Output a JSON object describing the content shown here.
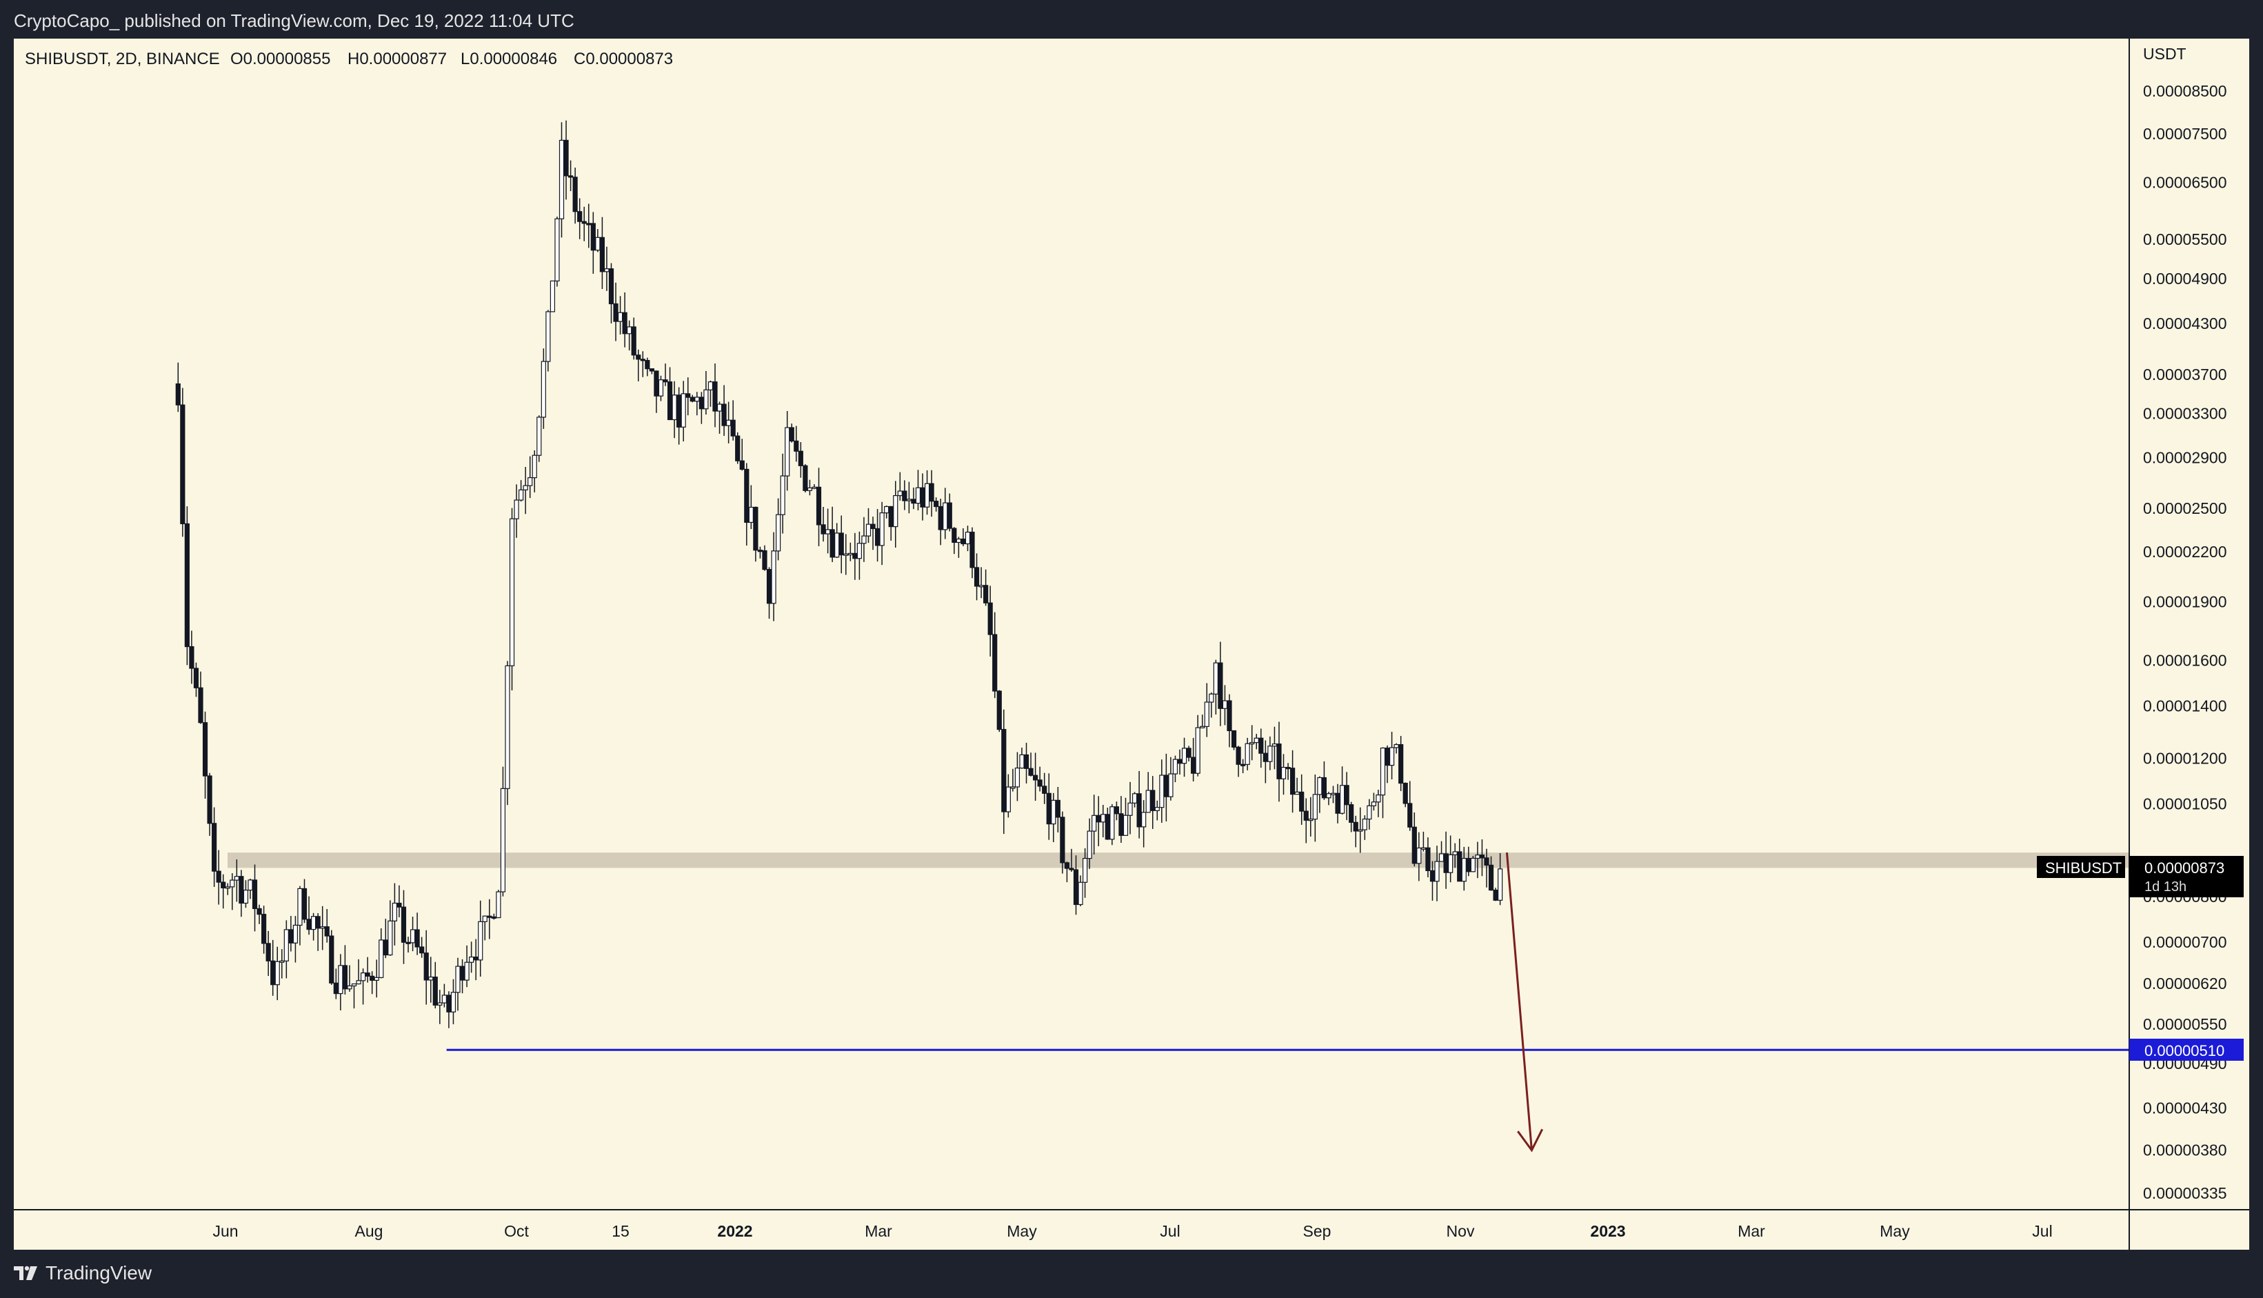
{
  "header": {
    "published_line": "CryptoCapo_ published on TradingView.com, Dec 19, 2022 11:04 UTC"
  },
  "footer": {
    "brand": "TradingView"
  },
  "symbol_info": {
    "text": "SHIBUSDT, 2D, BINANCE",
    "open": "O0.00000855",
    "high": "H0.00000877",
    "low": "L0.00000846",
    "close": "C0.00000873"
  },
  "price_axis_currency": "USDT",
  "colors": {
    "background": "#fbf6e1",
    "candle": "#131722",
    "support_zone": "#cfc8b5",
    "support_line": "#1b1bd8",
    "arrow": "#7a1f1f",
    "last_price_label": "#000000"
  },
  "markers": {
    "last_price": {
      "symbol": "SHIBUSDT",
      "price": "0.00000873",
      "countdown": "1d 13h"
    },
    "level_line": {
      "price": "0.00000510"
    }
  },
  "chart_data": {
    "type": "candlestick",
    "scale": "log",
    "title": "",
    "xlabel": "",
    "ylabel": "USDT",
    "x_tick_labels": [
      "Jun",
      "Aug",
      "Oct",
      "15",
      "2022",
      "Mar",
      "May",
      "Jul",
      "Sep",
      "Nov",
      "2023",
      "Mar",
      "May",
      "Jul"
    ],
    "y_tick_labels": [
      "0.00008500",
      "0.00007500",
      "0.00006500",
      "0.00005500",
      "0.00004900",
      "0.00004300",
      "0.00003700",
      "0.00003300",
      "0.00002900",
      "0.00002500",
      "0.00002200",
      "0.00001900",
      "0.00001600",
      "0.00001400",
      "0.00001200",
      "0.00001050",
      "0.00000800",
      "0.00000700",
      "0.00000620",
      "0.00000550",
      "0.00000490",
      "0.00000430",
      "0.00000380",
      "0.00000335"
    ],
    "ylim": [
      3.2e-06,
      9.5e-05
    ],
    "price_path_approx": [
      [
        "2021-05-11",
        3.6e-05
      ],
      [
        "2021-05-15",
        1.7e-05
      ],
      [
        "2021-05-21",
        1.3e-05
      ],
      [
        "2021-05-27",
        8.2e-06
      ],
      [
        "2021-06-05",
        8.5e-06
      ],
      [
        "2021-06-15",
        7.8e-06
      ],
      [
        "2021-06-23",
        6.2e-06
      ],
      [
        "2021-07-05",
        8e-06
      ],
      [
        "2021-07-20",
        6.4e-06
      ],
      [
        "2021-08-01",
        6.1e-06
      ],
      [
        "2021-08-15",
        7.5e-06
      ],
      [
        "2021-08-25",
        6.8e-06
      ],
      [
        "2021-09-07",
        5.6e-06
      ],
      [
        "2021-09-15",
        6.8e-06
      ],
      [
        "2021-09-25",
        7.2e-06
      ],
      [
        "2021-10-01",
        8.8e-06
      ],
      [
        "2021-10-06",
        2.5e-05
      ],
      [
        "2021-10-15",
        2.9e-05
      ],
      [
        "2021-10-22",
        4.2e-05
      ],
      [
        "2021-10-28",
        7e-05
      ],
      [
        "2021-11-05",
        5.8e-05
      ],
      [
        "2021-11-15",
        5.1e-05
      ],
      [
        "2021-11-25",
        4.2e-05
      ],
      [
        "2021-12-05",
        3.6e-05
      ],
      [
        "2021-12-20",
        3.3e-05
      ],
      [
        "2022-01-01",
        3.5e-05
      ],
      [
        "2022-01-10",
        3.1e-05
      ],
      [
        "2022-01-20",
        2.4e-05
      ],
      [
        "2022-01-28",
        2e-05
      ],
      [
        "2022-02-05",
        3e-05
      ],
      [
        "2022-02-15",
        2.7e-05
      ],
      [
        "2022-02-25",
        2.3e-05
      ],
      [
        "2022-03-10",
        2.2e-05
      ],
      [
        "2022-03-25",
        2.5e-05
      ],
      [
        "2022-04-05",
        2.6e-05
      ],
      [
        "2022-04-18",
        2.4e-05
      ],
      [
        "2022-04-28",
        2.2e-05
      ],
      [
        "2022-05-06",
        1.7e-05
      ],
      [
        "2022-05-12",
        1.05e-05
      ],
      [
        "2022-05-20",
        1.15e-05
      ],
      [
        "2022-06-01",
        1.05e-05
      ],
      [
        "2022-06-13",
        8e-06
      ],
      [
        "2022-06-20",
        1e-05
      ],
      [
        "2022-07-05",
        1e-05
      ],
      [
        "2022-07-20",
        1.1e-05
      ],
      [
        "2022-08-05",
        1.2e-05
      ],
      [
        "2022-08-14",
        1.6e-05
      ],
      [
        "2022-08-20",
        1.25e-05
      ],
      [
        "2022-09-01",
        1.22e-05
      ],
      [
        "2022-09-10",
        1.18e-05
      ],
      [
        "2022-09-20",
        1.05e-05
      ],
      [
        "2022-10-05",
        1.1e-05
      ],
      [
        "2022-10-20",
        9.9e-06
      ],
      [
        "2022-10-28",
        1.25e-05
      ],
      [
        "2022-11-05",
        1.15e-05
      ],
      [
        "2022-11-10",
        8.8e-06
      ],
      [
        "2022-11-22",
        8.7e-06
      ],
      [
        "2022-12-05",
        9e-06
      ],
      [
        "2022-12-15",
        8.2e-06
      ],
      [
        "2022-12-19",
        8.73e-06
      ]
    ],
    "annotations": [
      {
        "type": "horizontal_zone",
        "from": 8.7e-06,
        "to": 9.1e-06
      },
      {
        "type": "horizontal_line",
        "price": 5.1e-06,
        "start": "2021-09-07"
      },
      {
        "type": "arrow",
        "from_date": "2022-12-21",
        "from_price": 9.1e-06,
        "to_date": "2023-01-01",
        "to_price": 3.8e-06
      }
    ]
  }
}
